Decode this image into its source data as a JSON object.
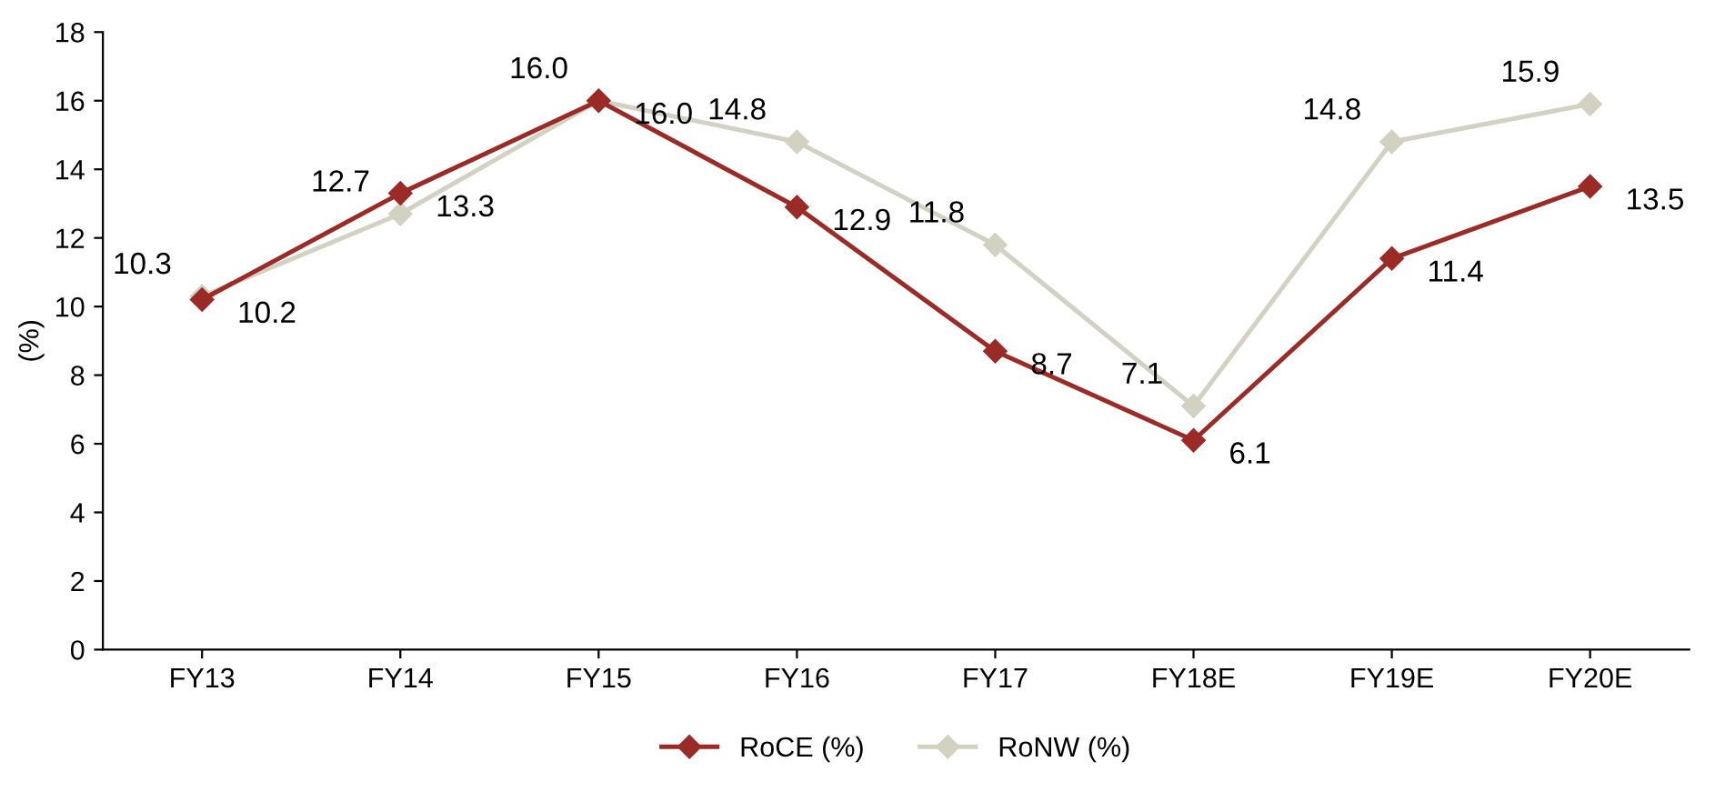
{
  "chart_data": {
    "type": "line",
    "ylabel": "(%)",
    "categories": [
      "FY13",
      "FY14",
      "FY15",
      "FY16",
      "FY17",
      "FY18E",
      "FY19E",
      "FY20E"
    ],
    "series": [
      {
        "name": "RoCE (%)",
        "color": "#9b2b26",
        "values": [
          10.2,
          13.3,
          16.0,
          12.9,
          8.7,
          6.1,
          11.4,
          13.5
        ],
        "value_labels": [
          "10.2",
          "13.3",
          "16.0",
          "12.9",
          "8.7",
          "6.1",
          "11.4",
          "13.5"
        ]
      },
      {
        "name": "RoNW (%)",
        "color": "#d3d1c1",
        "values": [
          10.3,
          12.7,
          16.0,
          14.8,
          11.8,
          7.1,
          14.8,
          15.9
        ],
        "value_labels": [
          "10.3",
          "12.7",
          "16.0",
          "14.8",
          "11.8",
          "7.1",
          "14.8",
          "15.9"
        ]
      }
    ],
    "ylim": [
      0,
      18
    ],
    "yticks": [
      0,
      2,
      4,
      6,
      8,
      10,
      12,
      14,
      16,
      18
    ],
    "grid": false,
    "legend": "bottom",
    "marker": "diamond",
    "line_style": "solid"
  }
}
